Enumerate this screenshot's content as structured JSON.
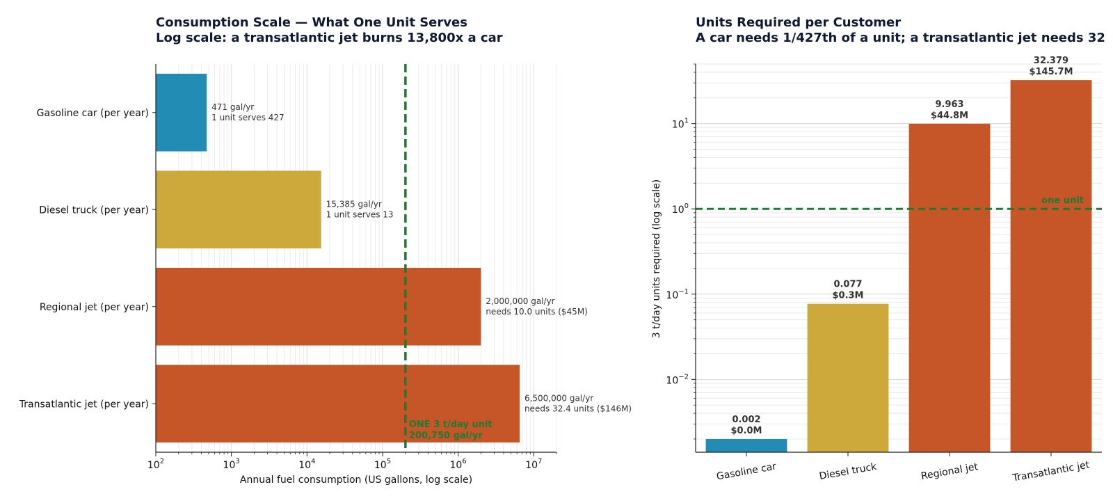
{
  "chart_data": [
    {
      "type": "bar",
      "orientation": "horizontal",
      "title": "Consumption Scale — What One Unit Serves",
      "subtitle": "Log scale: a transatlantic jet burns 13,800x a car",
      "xlabel": "Annual fuel consumption (US gallons, log scale)",
      "ylabel": "",
      "xscale": "log",
      "xlim": [
        100,
        20000000
      ],
      "xticks": [
        "10^2",
        "10^3",
        "10^4",
        "10^5",
        "10^6",
        "10^7"
      ],
      "grid": "vertical",
      "categories": [
        "Gasoline car (per year)",
        "Diesel truck (per year)",
        "Regional jet (per year)",
        "Transatlantic jet (per year)"
      ],
      "values": [
        471,
        15385,
        2000000,
        6500000
      ],
      "colors": [
        "#238cb5",
        "#cda83a",
        "#c65627",
        "#c65627"
      ],
      "annotations": [
        [
          "471 gal/yr",
          "1 unit serves 427"
        ],
        [
          "15,385 gal/yr",
          "1 unit serves 13"
        ],
        [
          "2,000,000 gal/yr",
          "needs 10.0 units ($45M)"
        ],
        [
          "6,500,000 gal/yr",
          "needs 32.4 units ($146M)"
        ]
      ],
      "reference_line": {
        "value": 200750,
        "label_lines": [
          "ONE 3 t/day unit",
          "200,750 gal/yr"
        ],
        "color": "#1e7a34"
      }
    },
    {
      "type": "bar",
      "title": "Units Required per Customer",
      "subtitle": "A car needs 1/427th of a unit; a transatlantic jet needs 32",
      "xlabel": "",
      "ylabel": "3 t/day units required (log scale)",
      "yscale": "log",
      "ylim": [
        0.0014,
        50
      ],
      "yticks": [
        "10^-2",
        "10^-1",
        "10^0",
        "10^1"
      ],
      "grid": "horizontal",
      "categories": [
        "Gasoline car",
        "Diesel truck",
        "Regional jet",
        "Transatlantic jet"
      ],
      "values": [
        0.002,
        0.077,
        9.963,
        32.379
      ],
      "value_labels": [
        [
          "0.002",
          "$0.0M"
        ],
        [
          "0.077",
          "$0.3M"
        ],
        [
          "9.963",
          "$44.8M"
        ],
        [
          "32.379",
          "$145.7M"
        ]
      ],
      "colors": [
        "#238cb5",
        "#cda83a",
        "#c65627",
        "#c65627"
      ],
      "reference_line": {
        "value": 1,
        "label": "one unit",
        "color": "#1e7a34"
      }
    }
  ]
}
